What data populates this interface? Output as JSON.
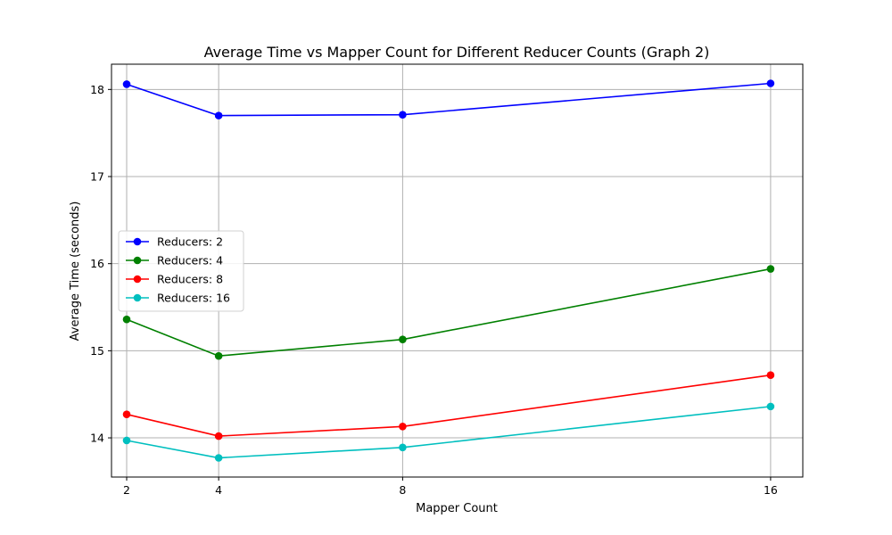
{
  "chart_data": {
    "type": "line",
    "title": "Average Time vs Mapper Count for Different Reducer Counts (Graph 2)",
    "xlabel": "Mapper Count",
    "ylabel": "Average Time (seconds)",
    "x": [
      2,
      4,
      8,
      16
    ],
    "xticks": [
      2,
      4,
      8,
      16
    ],
    "yticks": [
      14,
      15,
      16,
      17,
      18
    ],
    "xlim": [
      1.67,
      16.7
    ],
    "ylim": [
      13.55,
      18.29
    ],
    "grid": true,
    "legend_position": "center-left",
    "series": [
      {
        "name": "Reducers: 2",
        "color": "#0000ff",
        "values": [
          18.06,
          17.7,
          17.71,
          18.07
        ]
      },
      {
        "name": "Reducers: 4",
        "color": "#008000",
        "values": [
          15.36,
          14.94,
          15.13,
          15.94
        ]
      },
      {
        "name": "Reducers: 8",
        "color": "#ff0000",
        "values": [
          14.27,
          14.02,
          14.13,
          14.72
        ]
      },
      {
        "name": "Reducers: 16",
        "color": "#00bfbf",
        "values": [
          13.97,
          13.77,
          13.89,
          14.36
        ]
      }
    ]
  }
}
